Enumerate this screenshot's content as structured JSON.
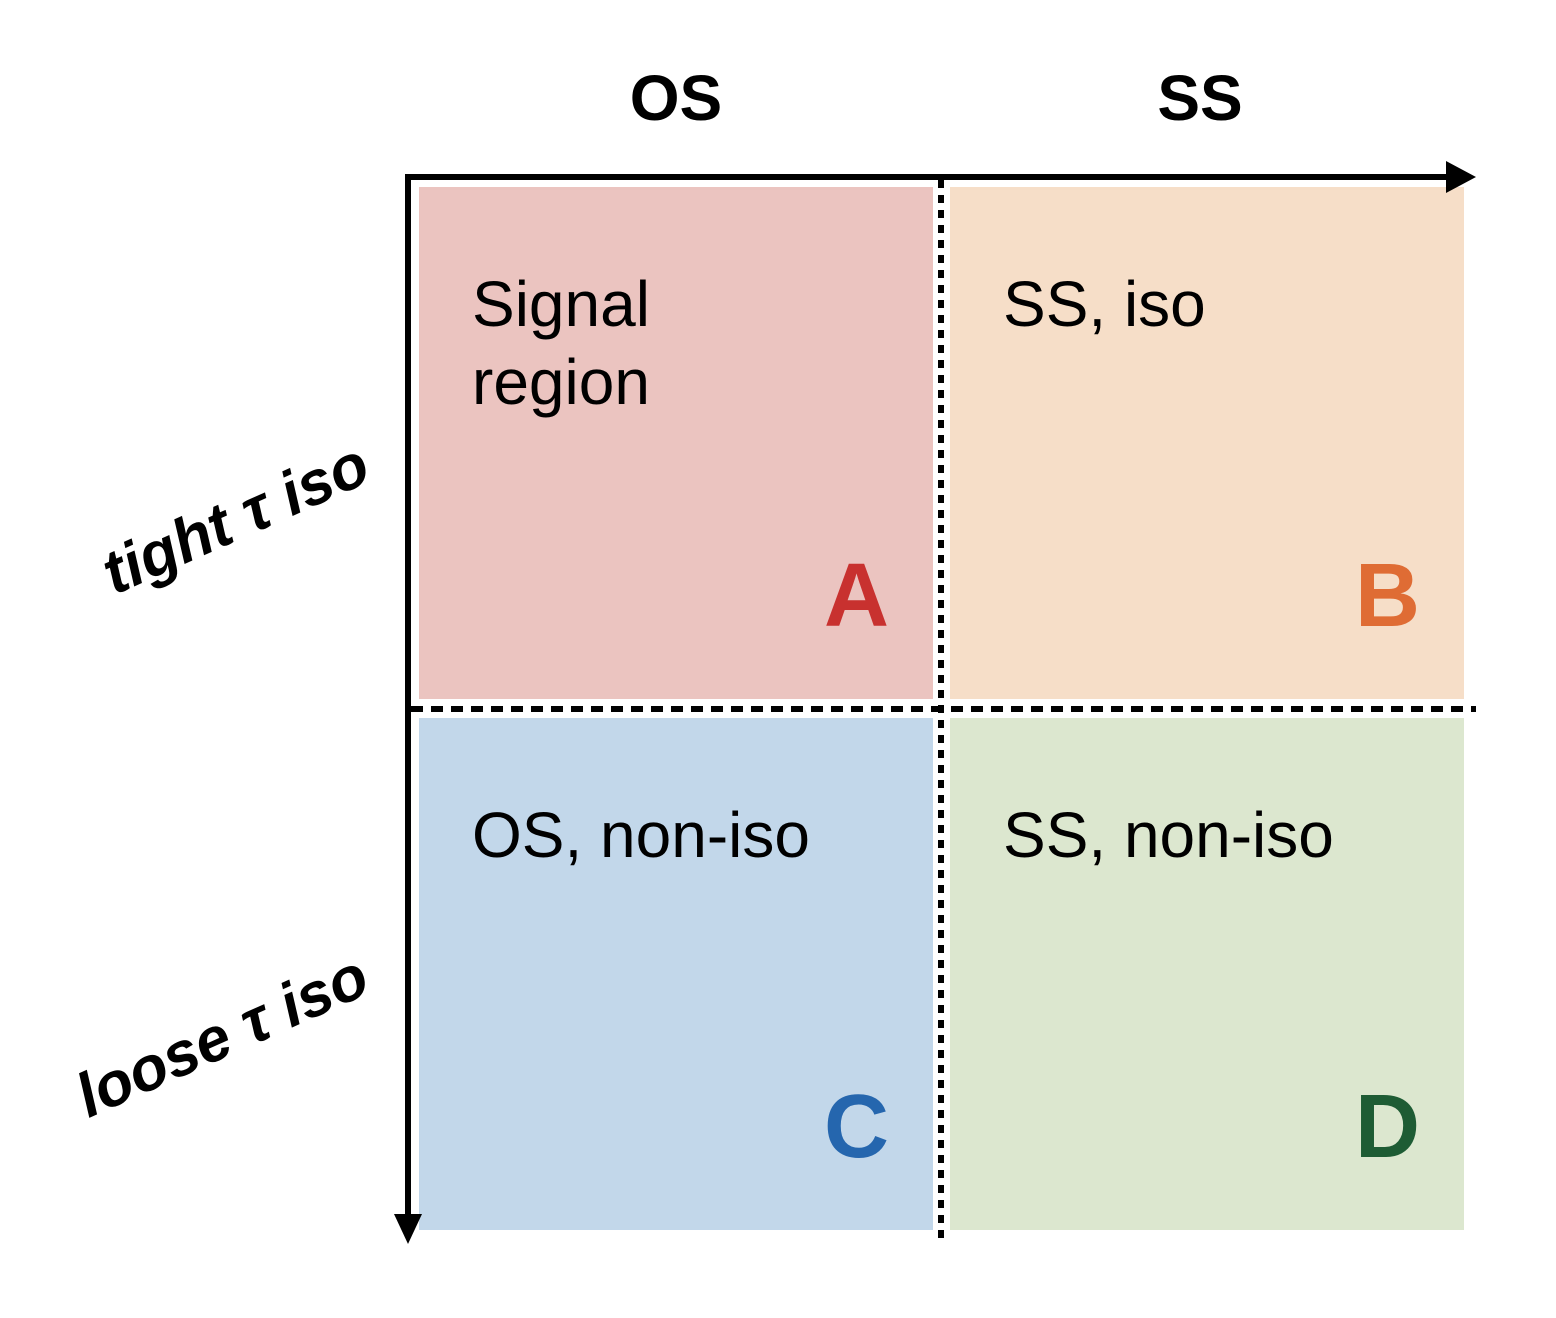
{
  "columns": {
    "os": "OS",
    "ss": "SS"
  },
  "rows": {
    "tight": "tight τ iso",
    "loose": "loose τ iso"
  },
  "regions": {
    "a": {
      "label": "Signal\nregion",
      "letter": "A",
      "fill": "#ebc4c0",
      "letter_color": "#c8312f"
    },
    "b": {
      "label": "SS, iso",
      "letter": "B",
      "fill": "#f6dec8",
      "letter_color": "#df6c34"
    },
    "c": {
      "label": "OS, non-iso",
      "letter": "C",
      "fill": "#c2d7ea",
      "letter_color": "#2566ae"
    },
    "d": {
      "label": "SS, non-iso",
      "letter": "D",
      "fill": "#dce7cf",
      "letter_color": "#1e5c34"
    }
  }
}
